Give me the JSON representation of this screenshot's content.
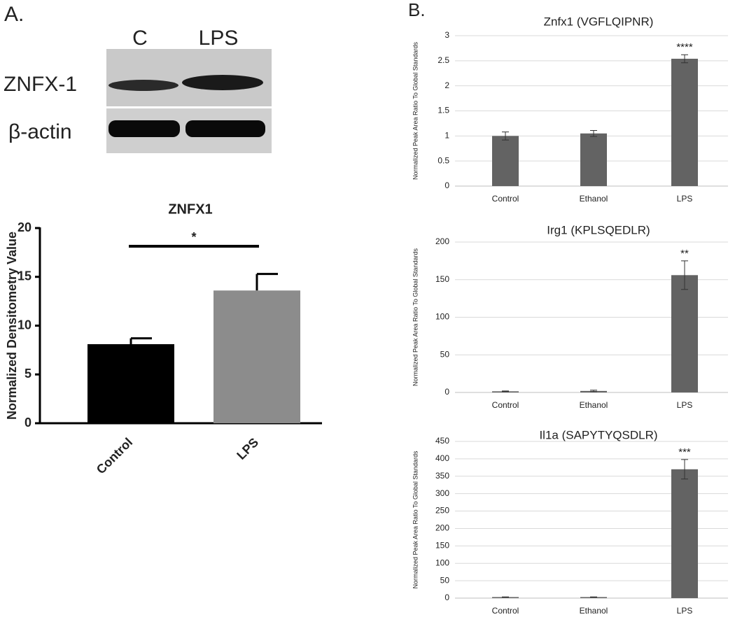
{
  "figure": {
    "panels": [
      "A.",
      "B."
    ],
    "blot": {
      "lanes": [
        "C",
        "LPS"
      ],
      "rows": [
        "ZNFX-1",
        "β-actin"
      ]
    }
  },
  "chart_data": [
    {
      "type": "bar",
      "title": "ZNFX1",
      "y_label": "Normalized Densitometry Value",
      "categories": [
        "Control",
        "LPS"
      ],
      "values": [
        8.1,
        13.6
      ],
      "errors": [
        0.6,
        1.7
      ],
      "colors": [
        "#000000",
        "#8c8c8c"
      ],
      "ylim": [
        0,
        20
      ],
      "yticks": [
        0,
        5,
        10,
        15,
        20
      ],
      "grid": false,
      "significance": "*"
    },
    {
      "type": "bar",
      "title": "Znfx1 (VGFLQIPNR)",
      "y_label": "Normalized Peak Area Ratio To Global Standards",
      "categories": [
        "Control",
        "Ethanol",
        "LPS"
      ],
      "values": [
        1.0,
        1.05,
        2.54
      ],
      "errors": [
        0.08,
        0.06,
        0.08
      ],
      "color": "#636363",
      "ylim": [
        0,
        3
      ],
      "yticks": [
        0,
        0.5,
        1,
        1.5,
        2,
        2.5,
        3
      ],
      "grid": true,
      "significance": [
        null,
        null,
        "****"
      ]
    },
    {
      "type": "bar",
      "title": "Irg1 (KPLSQEDLR)",
      "y_label": "Normalized Peak Area Ratio To Global Standards",
      "categories": [
        "Control",
        "Ethanol",
        "LPS"
      ],
      "values": [
        1.5,
        2,
        156
      ],
      "errors": [
        0.5,
        1,
        19
      ],
      "color": "#636363",
      "ylim": [
        0,
        200
      ],
      "yticks": [
        0,
        50,
        100,
        150,
        200
      ],
      "grid": true,
      "significance": [
        null,
        null,
        "**"
      ]
    },
    {
      "type": "bar",
      "title": "Il1a (SAPYTYQSDLR)",
      "y_label": "Normalized Peak Area Ratio To Global Standards",
      "categories": [
        "Control",
        "Ethanol",
        "LPS"
      ],
      "values": [
        3,
        3,
        370
      ],
      "errors": [
        0.5,
        0.5,
        28
      ],
      "color": "#636363",
      "ylim": [
        0,
        450
      ],
      "yticks": [
        0,
        50,
        100,
        150,
        200,
        250,
        300,
        350,
        400,
        450
      ],
      "grid": true,
      "significance": [
        null,
        null,
        "***"
      ]
    }
  ]
}
